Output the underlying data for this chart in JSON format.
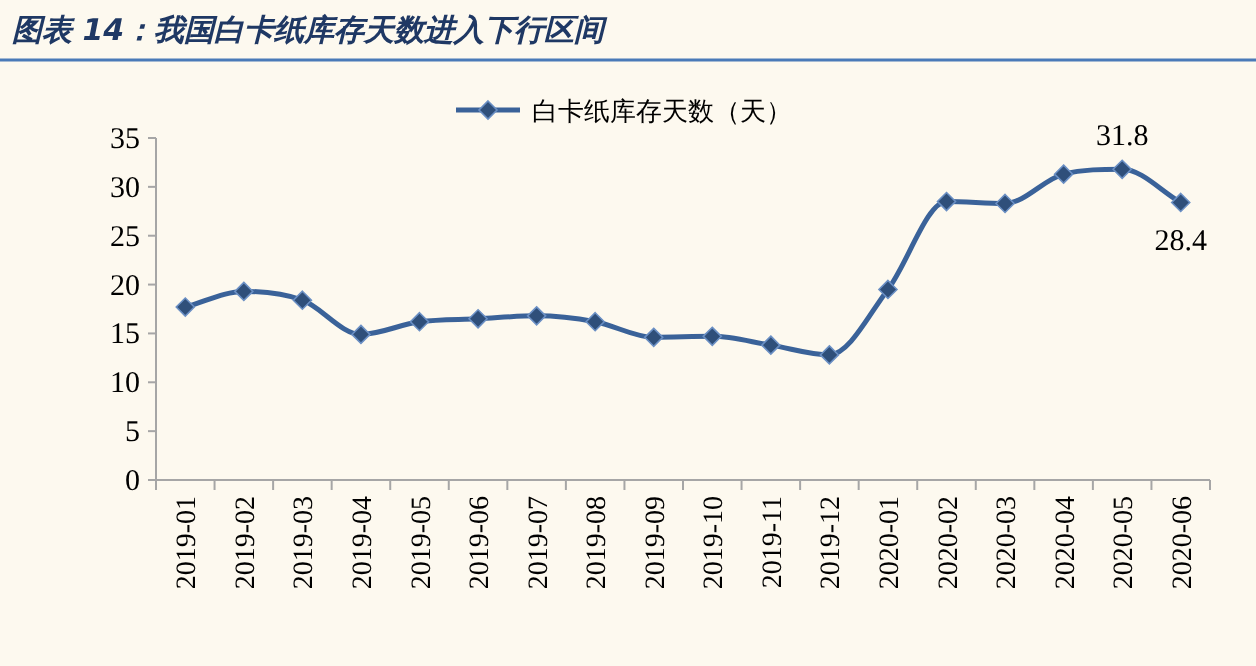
{
  "chart_data": {
    "type": "line",
    "title": "图表 14：我国白卡纸库存天数进入下行区间",
    "categories": [
      "2019-01",
      "2019-02",
      "2019-03",
      "2019-04",
      "2019-05",
      "2019-06",
      "2019-07",
      "2019-08",
      "2019-09",
      "2019-10",
      "2019-11",
      "2019-12",
      "2020-01",
      "2020-02",
      "2020-03",
      "2020-04",
      "2020-05",
      "2020-06"
    ],
    "series": [
      {
        "name": "白卡纸库存天数（天）",
        "color": "#3a6299",
        "values": [
          17.7,
          19.3,
          18.4,
          14.9,
          16.2,
          16.5,
          16.8,
          16.2,
          14.6,
          14.7,
          13.8,
          12.8,
          19.5,
          28.5,
          28.3,
          31.3,
          31.8,
          28.4
        ],
        "value_labels": [
          null,
          null,
          null,
          null,
          null,
          null,
          null,
          null,
          null,
          null,
          null,
          null,
          null,
          null,
          null,
          null,
          "31.8",
          "28.4"
        ]
      }
    ],
    "ylim": [
      0,
      35
    ],
    "yticks": [
      0,
      5,
      10,
      15,
      20,
      25,
      30,
      35
    ],
    "grid": false,
    "legend": "top",
    "marker": "diamond",
    "line_style": "solid"
  }
}
